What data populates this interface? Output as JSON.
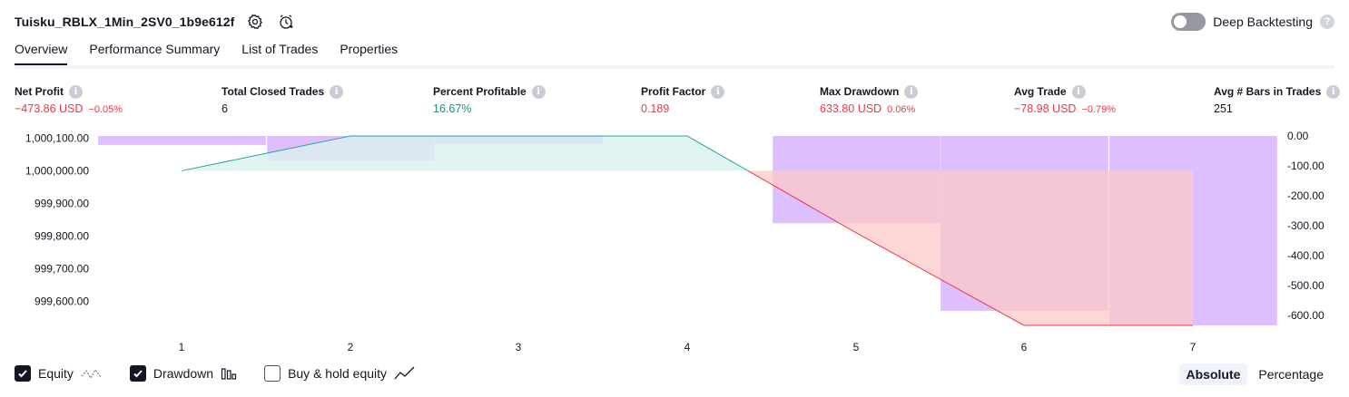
{
  "header": {
    "strategy_title": "Tuisku_RBLX_1Min_2SV0_1b9e612f",
    "deep_backtesting_label": "Deep Backtesting",
    "deep_backtesting_enabled": false
  },
  "tabs": [
    {
      "label": "Overview",
      "active": true
    },
    {
      "label": "Performance Summary",
      "active": false
    },
    {
      "label": "List of Trades",
      "active": false
    },
    {
      "label": "Properties",
      "active": false
    }
  ],
  "metrics": {
    "net_profit": {
      "label": "Net Profit",
      "value": "−473.86 USD",
      "pct": "−0.05%"
    },
    "total_closed_trades": {
      "label": "Total Closed Trades",
      "value": "6"
    },
    "percent_profitable": {
      "label": "Percent Profitable",
      "value": "16.67%"
    },
    "profit_factor": {
      "label": "Profit Factor",
      "value": "0.189"
    },
    "max_drawdown": {
      "label": "Max Drawdown",
      "value": "633.80 USD",
      "pct": "0.06%"
    },
    "avg_trade": {
      "label": "Avg Trade",
      "value": "−78.98 USD",
      "pct": "−0.79%"
    },
    "avg_bars": {
      "label": "Avg # Bars in Trades",
      "value": "251"
    }
  },
  "chart_data": {
    "type": "area",
    "x": [
      1,
      2,
      3,
      4,
      5,
      6,
      7
    ],
    "x_tick_labels": [
      "1",
      "2",
      "3",
      "4",
      "5",
      "6",
      "7"
    ],
    "left_axis": {
      "tick_labels": [
        "1,000,100.00",
        "1,000,000.00",
        "999,900.00",
        "999,800.00",
        "999,700.00",
        "999,600.00"
      ],
      "ticks": [
        1000100,
        1000000,
        999900,
        999800,
        999700,
        999600
      ],
      "ylim": [
        999526.14,
        1000106.78
      ]
    },
    "right_axis": {
      "tick_labels": [
        "0.00",
        "-100.00",
        "-200.00",
        "-300.00",
        "-400.00",
        "-500.00",
        "-600.00"
      ],
      "ticks": [
        0,
        -100,
        -200,
        -300,
        -400,
        -500,
        -600
      ],
      "ylim": [
        -633.8,
        0
      ]
    },
    "series": [
      {
        "name": "Equity",
        "values": [
          1000000,
          1000106.78,
          1000106.78,
          1000106.78,
          999810,
          999526.14,
          999526.14
        ]
      },
      {
        "name": "Drawdown",
        "values": [
          -30,
          -82,
          -28,
          0,
          -292,
          -585,
          -633.8
        ]
      }
    ],
    "colors": {
      "equity_up": "#26a69a",
      "equity_down": "#f23645",
      "equity_fill_up": "#d9f1ee",
      "equity_fill_down": "#fcc8c8",
      "drawdown_fill": "#d8b4fe"
    }
  },
  "legend": {
    "items": [
      {
        "label": "Equity",
        "checked": true
      },
      {
        "label": "Drawdown",
        "checked": true
      },
      {
        "label": "Buy & hold equity",
        "checked": false
      }
    ]
  },
  "mode": {
    "options": [
      {
        "label": "Absolute",
        "active": true
      },
      {
        "label": "Percentage",
        "active": false
      }
    ]
  }
}
